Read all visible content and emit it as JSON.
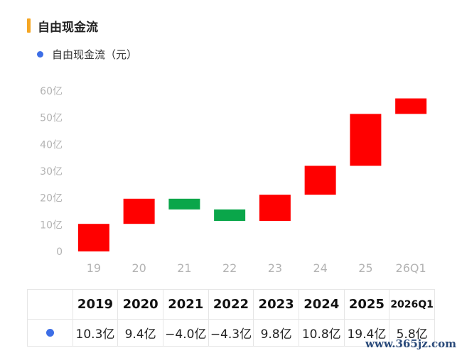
{
  "header": {
    "title": "自由现金流",
    "accent_color": "#f5a623"
  },
  "legend": {
    "label": "自由现金流（元）",
    "color": "#3d6ee6"
  },
  "chart_data": {
    "type": "waterfall",
    "categories": [
      "19",
      "20",
      "21",
      "22",
      "23",
      "24",
      "25",
      "26Q1"
    ],
    "series": [
      {
        "name": "自由现金流（元）",
        "values": [
          10.3,
          9.4,
          -4.0,
          -4.3,
          9.8,
          10.8,
          19.4,
          5.8
        ],
        "cumulative": [
          10.3,
          19.7,
          15.7,
          11.4,
          21.2,
          32.0,
          51.4,
          57.2
        ]
      }
    ],
    "y_ticks": [
      "0",
      "10亿",
      "20亿",
      "30亿",
      "40亿",
      "50亿",
      "60亿"
    ],
    "ylim": [
      0,
      60
    ],
    "colors": {
      "positive": "#ff0000",
      "negative": "#0aa64a"
    },
    "grid": false
  },
  "table": {
    "headers": [
      "2019",
      "2020",
      "2021",
      "2022",
      "2023",
      "2024",
      "2025",
      "2026Q1"
    ],
    "values": [
      "10.3亿",
      "9.4亿",
      "−4.0亿",
      "−4.3亿",
      "9.8亿",
      "10.8亿",
      "19.4亿",
      "5.8亿"
    ]
  },
  "watermark": "www.365jz.com"
}
